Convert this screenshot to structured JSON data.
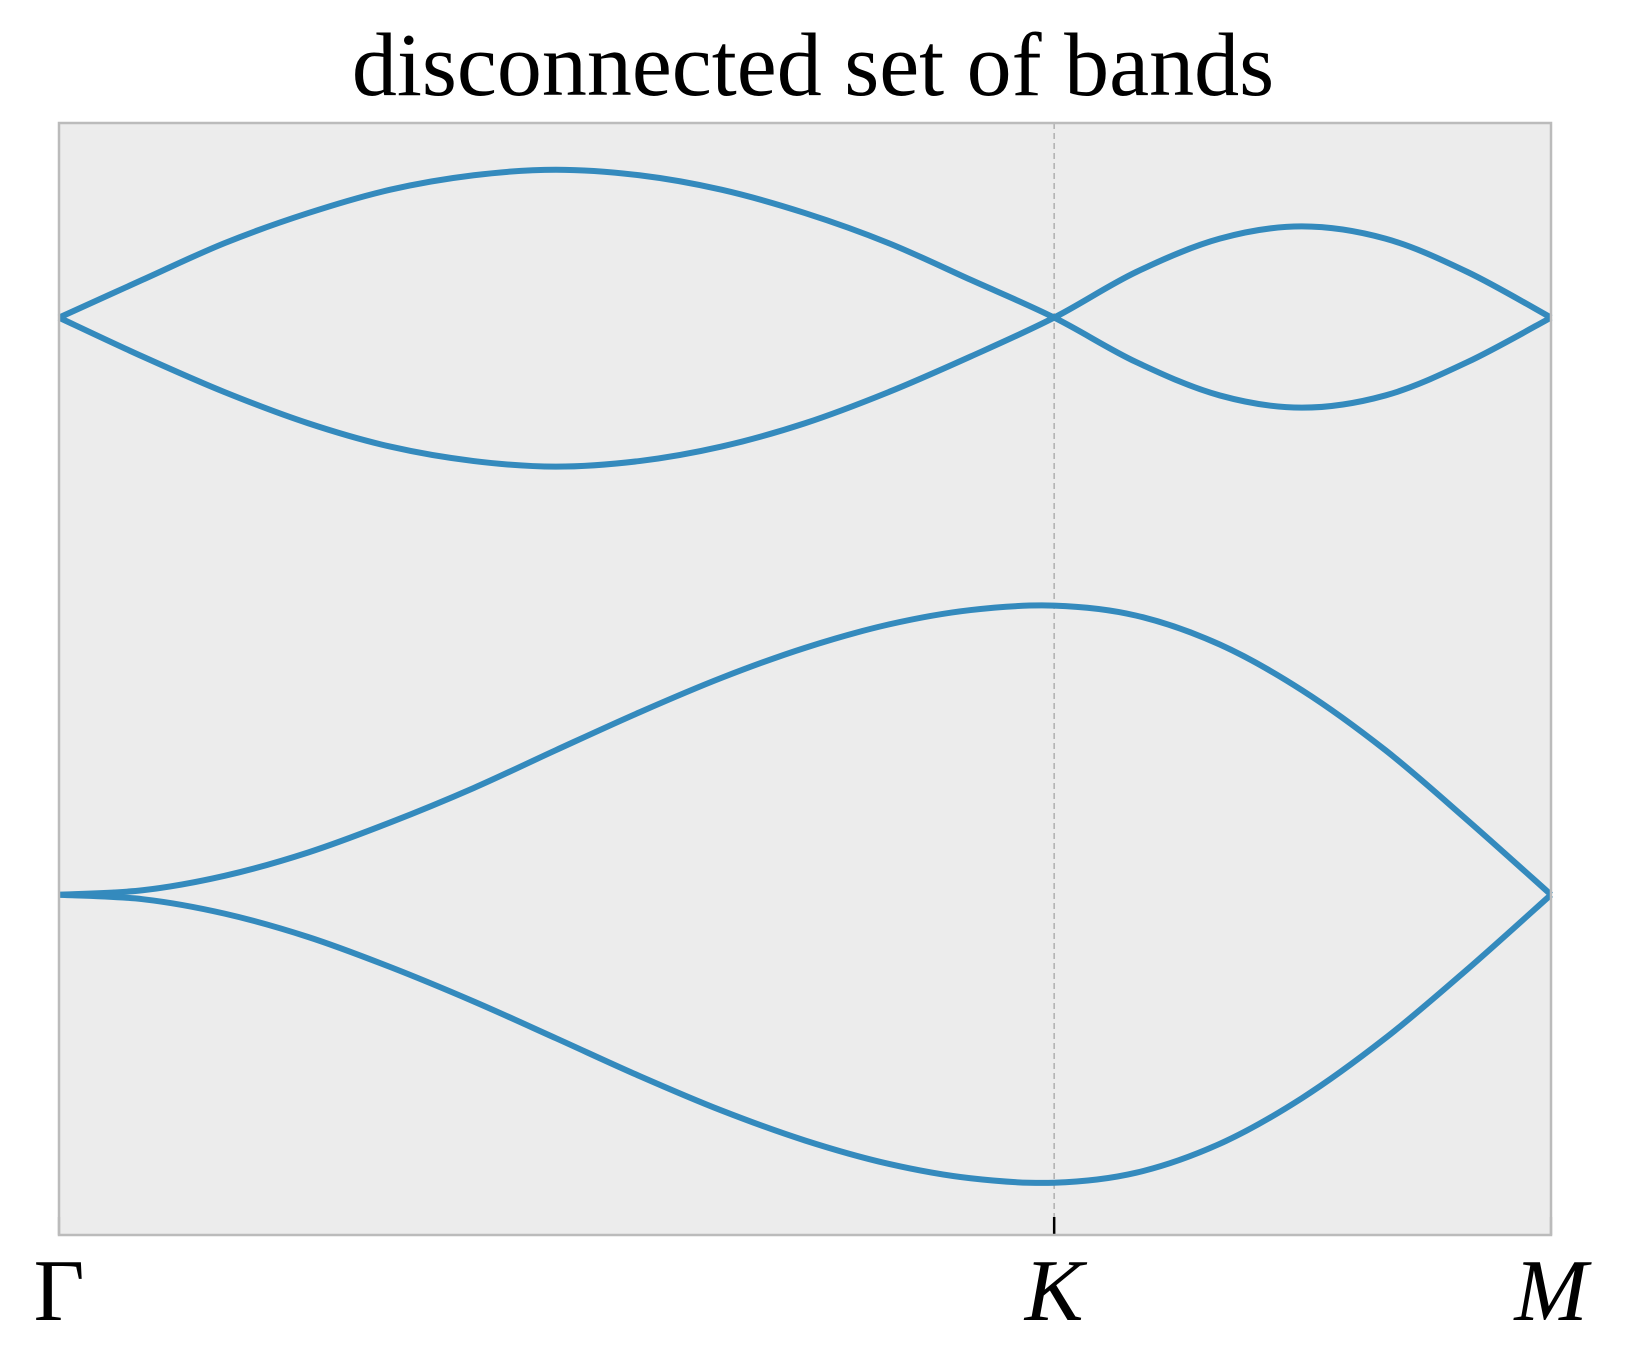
{
  "chart_data": {
    "type": "line",
    "title": "disconnected set of bands",
    "x": [
      0,
      0.056,
      0.111,
      0.167,
      0.222,
      0.278,
      0.333,
      0.389,
      0.444,
      0.5,
      0.556,
      0.611,
      0.667,
      0.722,
      0.778,
      0.833,
      0.889,
      0.944,
      1
    ],
    "series": [
      {
        "color": "#348abd",
        "values": [
          0.825,
          0.859,
          0.892,
          0.919,
          0.94,
          0.953,
          0.958,
          0.953,
          0.94,
          0.919,
          0.892,
          0.859,
          0.825,
          0.785,
          0.755,
          0.744,
          0.755,
          0.785,
          0.825
        ]
      },
      {
        "color": "#348abd",
        "values": [
          0.825,
          0.79,
          0.758,
          0.73,
          0.709,
          0.696,
          0.691,
          0.696,
          0.709,
          0.73,
          0.758,
          0.79,
          0.825,
          0.866,
          0.896,
          0.907,
          0.896,
          0.866,
          0.825
        ]
      },
      {
        "color": "#348abd",
        "values": [
          0.306,
          0.31,
          0.323,
          0.344,
          0.371,
          0.402,
          0.436,
          0.47,
          0.501,
          0.528,
          0.549,
          0.562,
          0.566,
          0.557,
          0.531,
          0.49,
          0.436,
          0.373,
          0.306
        ]
      },
      {
        "color": "#348abd",
        "values": [
          0.306,
          0.302,
          0.289,
          0.268,
          0.241,
          0.21,
          0.177,
          0.143,
          0.112,
          0.085,
          0.064,
          0.051,
          0.047,
          0.056,
          0.082,
          0.123,
          0.177,
          0.239,
          0.306
        ]
      }
    ],
    "xlim": [
      0,
      1
    ],
    "ylim": [
      0,
      1
    ],
    "xticks": [
      {
        "value": 0,
        "label": "Γ"
      },
      {
        "value": 0.667,
        "label": "K"
      },
      {
        "value": 1,
        "label": "M"
      }
    ],
    "grid": true
  }
}
